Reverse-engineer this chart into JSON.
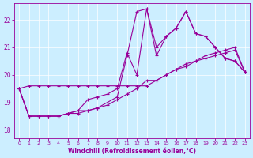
{
  "xlabel": "Windchill (Refroidissement éolien,°C)",
  "bg_color": "#cceeff",
  "line_color": "#990099",
  "xlim": [
    -0.5,
    23.5
  ],
  "ylim": [
    17.7,
    22.6
  ],
  "yticks": [
    18,
    19,
    20,
    21,
    22
  ],
  "xticks": [
    0,
    1,
    2,
    3,
    4,
    5,
    6,
    7,
    8,
    9,
    10,
    11,
    12,
    13,
    14,
    15,
    16,
    17,
    18,
    19,
    20,
    21,
    22,
    23
  ],
  "series": [
    {
      "x": [
        0,
        1,
        2,
        3,
        4,
        5,
        6,
        7,
        8,
        9,
        10,
        11,
        12,
        13,
        14,
        15,
        16,
        17,
        18,
        19,
        20,
        21,
        22,
        23
      ],
      "y": [
        19.5,
        19.6,
        19.6,
        19.6,
        19.6,
        19.6,
        19.6,
        19.6,
        19.6,
        19.6,
        19.6,
        19.6,
        19.6,
        19.6,
        19.8,
        20.0,
        20.2,
        20.4,
        20.5,
        20.6,
        20.7,
        20.8,
        20.9,
        20.1
      ]
    },
    {
      "x": [
        0,
        1,
        2,
        3,
        4,
        5,
        6,
        7,
        8,
        9,
        10,
        11,
        12,
        13,
        14,
        15,
        16,
        17,
        18,
        19,
        20,
        21,
        22,
        23
      ],
      "y": [
        19.5,
        18.5,
        18.5,
        18.5,
        18.5,
        18.6,
        18.6,
        18.7,
        18.8,
        18.9,
        19.1,
        19.3,
        19.5,
        19.8,
        19.8,
        20.0,
        20.2,
        20.3,
        20.5,
        20.7,
        20.8,
        20.9,
        21.0,
        20.1
      ]
    },
    {
      "x": [
        0,
        1,
        2,
        3,
        4,
        5,
        6,
        7,
        8,
        9,
        10,
        11,
        12,
        13,
        14,
        15,
        16,
        17,
        18,
        19,
        20,
        21,
        22,
        23
      ],
      "y": [
        19.5,
        18.5,
        18.5,
        18.5,
        18.5,
        18.6,
        18.7,
        19.1,
        19.2,
        19.3,
        19.5,
        20.8,
        20.0,
        22.4,
        21.0,
        21.4,
        21.7,
        22.3,
        21.5,
        21.4,
        21.0,
        20.6,
        20.5,
        20.1
      ]
    },
    {
      "x": [
        0,
        1,
        2,
        3,
        4,
        5,
        6,
        7,
        8,
        9,
        10,
        11,
        12,
        13,
        14,
        15,
        16,
        17,
        18,
        19,
        20,
        21,
        22,
        23
      ],
      "y": [
        19.5,
        18.5,
        18.5,
        18.5,
        18.5,
        18.6,
        18.7,
        18.7,
        18.8,
        19.0,
        19.2,
        20.7,
        22.3,
        22.4,
        20.7,
        21.4,
        21.7,
        22.3,
        21.5,
        21.4,
        21.0,
        20.6,
        20.5,
        20.1
      ]
    }
  ]
}
